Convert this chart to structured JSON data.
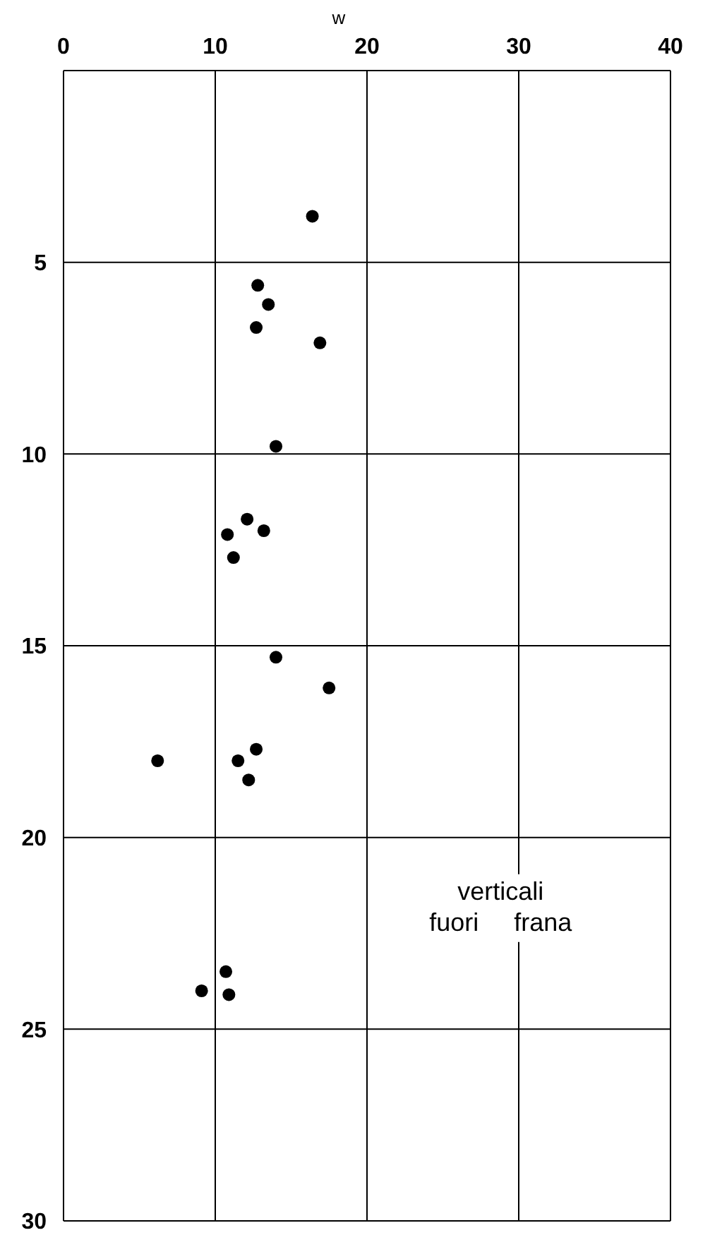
{
  "chart_data": {
    "type": "scatter",
    "xlabel": "w",
    "xlim": [
      0,
      40
    ],
    "xticks": [
      0,
      10,
      20,
      30,
      40
    ],
    "ylim": [
      30,
      0
    ],
    "yticks": [
      5,
      10,
      15,
      20,
      25,
      30
    ],
    "grid": true,
    "marker": "circle",
    "x": [
      16.4,
      12.8,
      13.5,
      12.7,
      16.9,
      14.0,
      12.1,
      10.8,
      13.2,
      11.2,
      14.0,
      17.5,
      12.7,
      6.2,
      11.5,
      12.2,
      10.7,
      9.1,
      10.9
    ],
    "series": [
      {
        "color": "#000000",
        "values": [
          3.8,
          5.6,
          6.1,
          6.7,
          7.1,
          9.8,
          11.7,
          12.1,
          12.0,
          12.7,
          15.3,
          16.1,
          17.7,
          18.0,
          18.0,
          18.5,
          23.5,
          24.0,
          24.1
        ]
      }
    ],
    "annotations": [
      "verticali\nfuori     frana"
    ]
  }
}
